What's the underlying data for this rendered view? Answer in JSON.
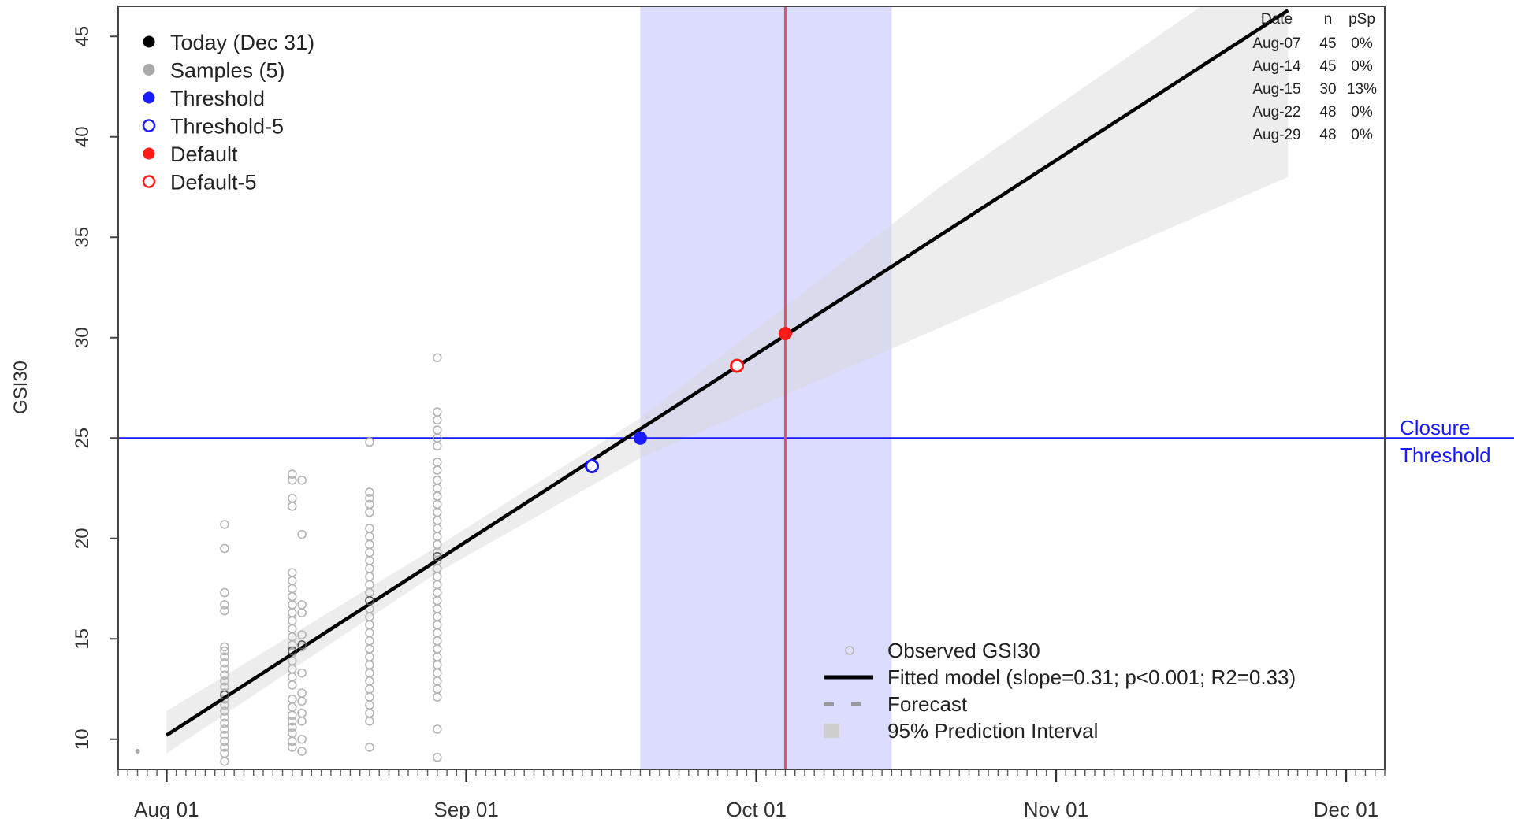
{
  "chart_data": {
    "type": "scatter",
    "ylabel": "GSI30",
    "xlabel": "",
    "x_ticks": [
      {
        "label": "Aug 01",
        "date": "2023-08-01"
      },
      {
        "label": "Sep 01",
        "date": "2023-09-01"
      },
      {
        "label": "Oct 01",
        "date": "2023-10-01"
      },
      {
        "label": "Nov 01",
        "date": "2023-11-01"
      },
      {
        "label": "Dec 01",
        "date": "2023-12-01"
      }
    ],
    "y_ticks": [
      "10",
      "15",
      "20",
      "25",
      "30",
      "35",
      "40",
      "45"
    ],
    "xlim": [
      "2023-07-27",
      "2023-12-05"
    ],
    "ylim": [
      8.5,
      46.5
    ],
    "threshold": {
      "value": 25,
      "label_line1": "Closure",
      "label_line2": "Threshold",
      "color": "#1a1aff"
    },
    "default_date": "2023-10-04",
    "shaded_window": {
      "start": "2023-09-19",
      "end": "2023-10-15",
      "color": "#dcdcff"
    },
    "fitted_line": {
      "start": {
        "date": "2023-08-01",
        "y": 10.2
      },
      "end": {
        "date": "2023-11-25",
        "y": 46.3
      }
    },
    "prediction_interval": [
      {
        "date": "2023-08-01",
        "lo": 9.3,
        "hi": 11.4
      },
      {
        "date": "2023-08-29",
        "lo": 18.3,
        "hi": 19.6
      },
      {
        "date": "2023-09-19",
        "lo": 24.0,
        "hi": 26.0
      },
      {
        "date": "2023-10-20",
        "lo": 30.5,
        "hi": 37.5
      },
      {
        "date": "2023-11-25",
        "lo": 38.0,
        "hi": 49.5
      }
    ],
    "observed": [
      {
        "date": "2023-08-07",
        "y": [
          20.7,
          19.5,
          17.3,
          16.7,
          16.4,
          14.6,
          14.4,
          14.1,
          13.8,
          13.5,
          13.2,
          12.9,
          12.6,
          12.3,
          12.0,
          11.7,
          11.4,
          11.1,
          10.8,
          10.5,
          10.2,
          9.9,
          9.6,
          9.3,
          8.9
        ]
      },
      {
        "date": "2023-08-14",
        "y": [
          23.2,
          22.9,
          22.0,
          21.6,
          18.3,
          17.9,
          17.5,
          17.1,
          16.7,
          16.3,
          15.9,
          15.5,
          15.1,
          14.7,
          14.3,
          13.9,
          13.5,
          13.1,
          12.7,
          12.0,
          11.6,
          11.2,
          10.9,
          10.6,
          10.3,
          9.9,
          9.6
        ]
      },
      {
        "date": "2023-08-15",
        "y": [
          22.9,
          20.2,
          16.7,
          16.3,
          15.2,
          14.6,
          13.3,
          12.3,
          11.9,
          11.3,
          10.9,
          10.0,
          9.4
        ]
      },
      {
        "date": "2023-08-22",
        "y": [
          24.8,
          22.3,
          22.0,
          21.7,
          21.3,
          20.5,
          20.1,
          19.7,
          19.3,
          18.9,
          18.5,
          18.1,
          17.7,
          17.3,
          16.9,
          16.5,
          16.1,
          15.7,
          15.3,
          14.9,
          14.5,
          14.1,
          13.7,
          13.3,
          12.9,
          12.5,
          12.1,
          11.7,
          11.3,
          10.9,
          9.6
        ]
      },
      {
        "date": "2023-08-29",
        "y": [
          29.0,
          26.3,
          25.9,
          25.4,
          25.0,
          24.6,
          23.8,
          23.4,
          22.9,
          22.5,
          22.1,
          21.7,
          21.3,
          20.9,
          20.5,
          20.1,
          19.7,
          19.3,
          18.9,
          18.5,
          18.1,
          17.7,
          17.3,
          16.9,
          16.5,
          16.1,
          15.7,
          15.3,
          14.9,
          14.5,
          14.1,
          13.7,
          13.3,
          12.9,
          12.5,
          12.1,
          10.5,
          9.1
        ]
      }
    ],
    "stray_point": {
      "date": "2023-07-29",
      "y": 9.4
    },
    "fit_markers": [
      {
        "date": "2023-08-07",
        "y": 12.2
      },
      {
        "date": "2023-08-14",
        "y": 14.4
      },
      {
        "date": "2023-08-15",
        "y": 14.7
      },
      {
        "date": "2023-08-22",
        "y": 16.9
      },
      {
        "date": "2023-08-29",
        "y": 19.1
      }
    ],
    "key_points": [
      {
        "name": "threshold-5",
        "date": "2023-09-14",
        "y": 23.6,
        "color": "#1a1aff",
        "filled": false
      },
      {
        "name": "threshold",
        "date": "2023-09-19",
        "y": 25.0,
        "color": "#1a1aff",
        "filled": true
      },
      {
        "name": "default-5",
        "date": "2023-09-29",
        "y": 28.6,
        "color": "#ff1a1a",
        "filled": false
      },
      {
        "name": "default",
        "date": "2023-10-04",
        "y": 30.2,
        "color": "#ff1a1a",
        "filled": true
      }
    ],
    "legend_top": {
      "placement": "top-left",
      "items": [
        {
          "label": "Today (Dec 31)",
          "color": "#000000",
          "filled": true
        },
        {
          "label": "Samples (5)",
          "color": "#aaaaaa",
          "filled": true
        },
        {
          "label": "Threshold",
          "color": "#1a1aff",
          "filled": true
        },
        {
          "label": "Threshold-5",
          "color": "#1a1aff",
          "filled": false
        },
        {
          "label": "Default",
          "color": "#ff1a1a",
          "filled": true
        },
        {
          "label": "Default-5",
          "color": "#ff1a1a",
          "filled": false
        }
      ]
    },
    "legend_bottom": {
      "placement": "bottom-right",
      "items": [
        {
          "label": "Observed GSI30",
          "kind": "circle"
        },
        {
          "label": "Fitted model (slope=0.31; p<0.001; R2=0.33)",
          "kind": "line"
        },
        {
          "label": "Forecast",
          "kind": "dash"
        },
        {
          "label": "95% Prediction Interval",
          "kind": "box"
        }
      ]
    },
    "sample_table": {
      "headers": [
        "Date",
        "n",
        "pSp"
      ],
      "rows": [
        [
          "Aug-07",
          "45",
          "0%"
        ],
        [
          "Aug-14",
          "45",
          "0%"
        ],
        [
          "Aug-15",
          "30",
          "13%"
        ],
        [
          "Aug-22",
          "48",
          "0%"
        ],
        [
          "Aug-29",
          "48",
          "0%"
        ]
      ]
    }
  }
}
